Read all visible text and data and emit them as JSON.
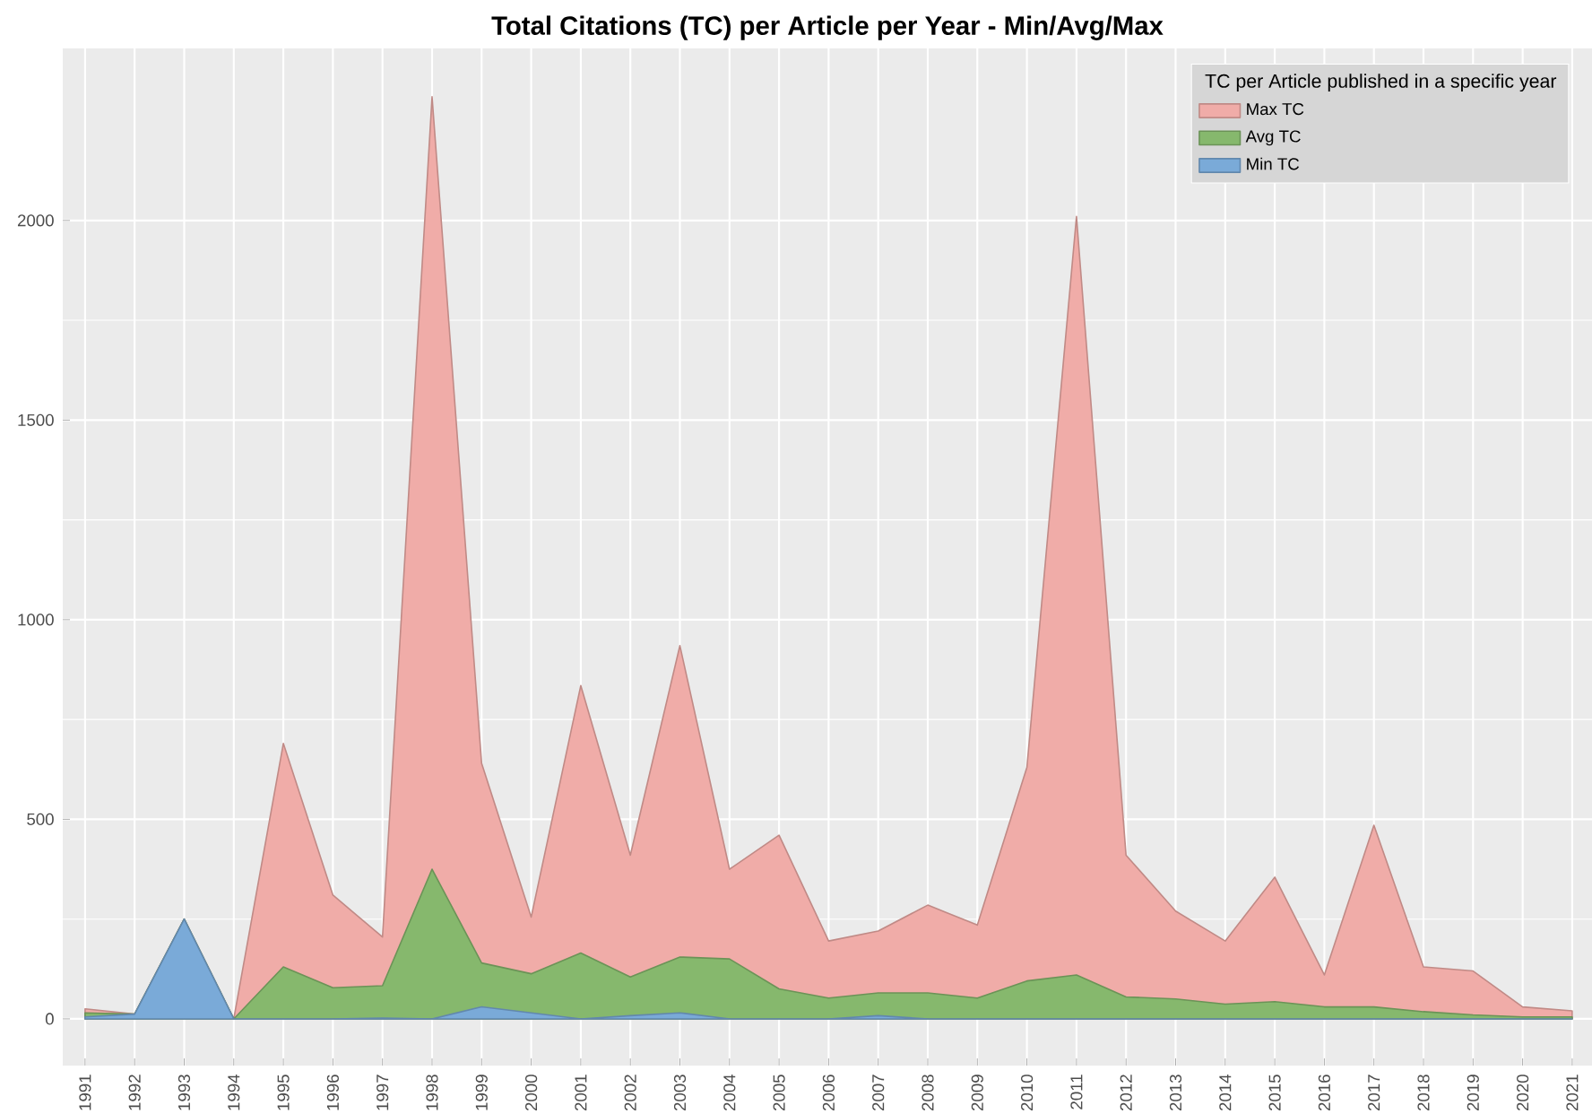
{
  "chart_data": {
    "type": "area",
    "title": "Total Citations (TC) per Article per Year - Min/Avg/Max",
    "categories": [
      "1991",
      "1992",
      "1993",
      "1994",
      "1995",
      "1996",
      "1997",
      "1998",
      "1999",
      "2000",
      "2001",
      "2002",
      "2003",
      "2004",
      "2005",
      "2006",
      "2007",
      "2008",
      "2009",
      "2010",
      "2011",
      "2012",
      "2013",
      "2014",
      "2015",
      "2016",
      "2017",
      "2018",
      "2019",
      "2020",
      "2021"
    ],
    "series": [
      {
        "name": "Max TC",
        "color": "#f0aca8",
        "values": [
          25,
          12,
          250,
          0,
          690,
          310,
          205,
          2310,
          640,
          255,
          835,
          410,
          935,
          375,
          460,
          195,
          220,
          285,
          235,
          630,
          2010,
          410,
          270,
          195,
          355,
          110,
          485,
          130,
          120,
          30,
          20
        ]
      },
      {
        "name": "Avg TC",
        "color": "#86b86d",
        "values": [
          15,
          12,
          250,
          0,
          130,
          78,
          83,
          375,
          140,
          113,
          165,
          105,
          155,
          150,
          75,
          52,
          65,
          65,
          52,
          95,
          110,
          55,
          50,
          37,
          43,
          30,
          30,
          18,
          10,
          5,
          5
        ]
      },
      {
        "name": "Min TC",
        "color": "#7aaad8",
        "values": [
          5,
          12,
          250,
          0,
          0,
          0,
          2,
          0,
          30,
          15,
          0,
          8,
          15,
          0,
          0,
          0,
          8,
          0,
          0,
          0,
          0,
          0,
          0,
          0,
          0,
          0,
          0,
          0,
          0,
          0,
          0
        ]
      }
    ],
    "legend_title": "TC per Article published in a specific year",
    "ylim": [
      -117,
      2431
    ],
    "yticks": [
      0,
      500,
      1000,
      1500,
      2000
    ],
    "grid": true,
    "legend": "top right"
  }
}
